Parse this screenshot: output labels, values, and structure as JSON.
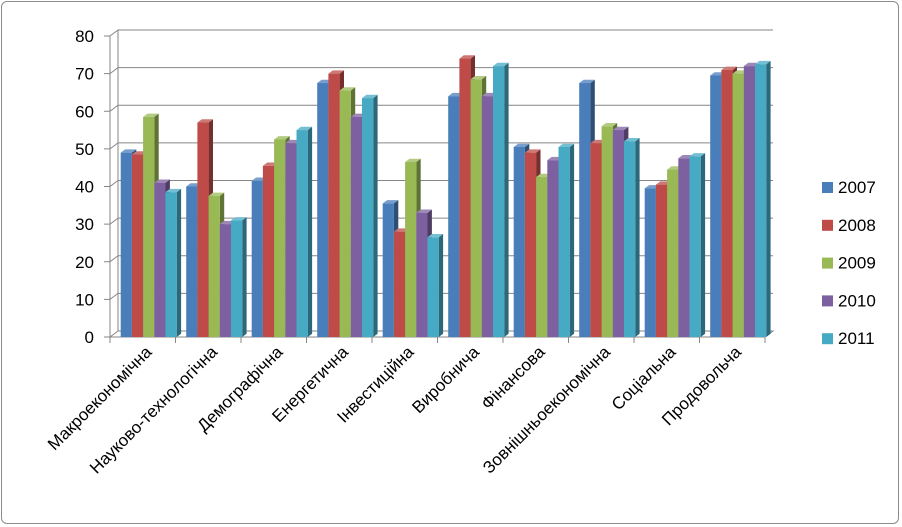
{
  "chart_data": {
    "type": "bar",
    "categories": [
      "Макроекономічна",
      "Науково-технологічна",
      "Демографічна",
      "Енергетична",
      "Інвестиційна",
      "Виробнича",
      "Фінансова",
      "Зовнішньоекономічна",
      "Соціальна",
      "Продовольча"
    ],
    "series": [
      {
        "name": "2007",
        "color": "#4a7ebb",
        "values": [
          49,
          40,
          41.5,
          67.5,
          35.5,
          64,
          50.5,
          67.5,
          39.5,
          69.5
        ]
      },
      {
        "name": "2008",
        "color": "#be4b48",
        "values": [
          48.5,
          57,
          45.5,
          70,
          28,
          74,
          49,
          51.5,
          40.5,
          71
        ]
      },
      {
        "name": "2009",
        "color": "#98b954",
        "values": [
          58.5,
          37.5,
          52.5,
          65.5,
          46.5,
          68.5,
          42.5,
          56,
          44.5,
          70
        ]
      },
      {
        "name": "2010",
        "color": "#7d60a0",
        "values": [
          41,
          30,
          51.5,
          58.5,
          33,
          64,
          47,
          55,
          47.5,
          72
        ]
      },
      {
        "name": "2011",
        "color": "#46aac5",
        "values": [
          38.5,
          31,
          55,
          63.5,
          26.5,
          72,
          50.5,
          52,
          48,
          72.5
        ]
      }
    ],
    "yticks": [
      "0",
      "10",
      "20",
      "30",
      "40",
      "50",
      "60",
      "70",
      "80"
    ],
    "ylim": [
      0,
      80
    ],
    "grid": true,
    "legend": "right"
  }
}
